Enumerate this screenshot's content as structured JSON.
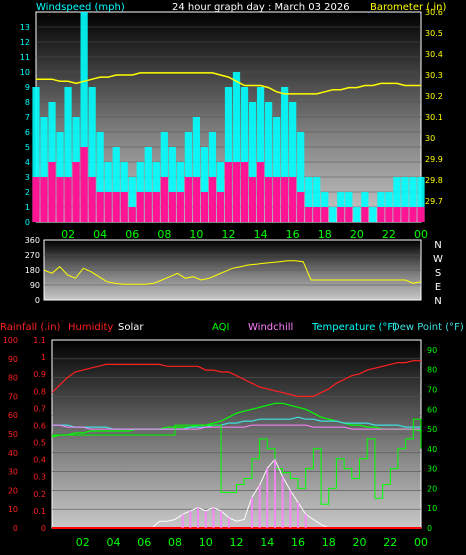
{
  "header": {
    "windspeed_label": "Windspeed (mph)",
    "title": "24 hour graph day : March 03 2026",
    "barometer_label": "Barometer (.in)"
  },
  "hours": [
    "02",
    "04",
    "06",
    "08",
    "10",
    "12",
    "14",
    "16",
    "18",
    "20",
    "22",
    "00"
  ],
  "compass": [
    "N",
    "W",
    "S",
    "E",
    "N"
  ],
  "legend": {
    "rainfall": "Rainfall (.in)",
    "humidity": "Humidity",
    "solar": "Solar",
    "aqi": "AQI",
    "windchill": "Windchill",
    "temperature": "Temperature (°F)",
    "dewpoint": "Dew Point (°F)"
  },
  "colors": {
    "windspeed": "#00ffff",
    "gust": "#ff1493",
    "barometer": "#ffff00",
    "direction": "#ffff00",
    "humidity": "#ff2020",
    "temperature": "#00ff00",
    "dewpoint": "#40e0e0",
    "windchill": "#ff80ff",
    "aqi": "#00ff00",
    "rainfall": "#ff0000",
    "solar": "#ffffff",
    "hours": "#00ff00"
  },
  "chart_data": [
    {
      "type": "bar",
      "name": "wind",
      "title": "",
      "xlabel": "",
      "ylabel": "Windspeed (mph)",
      "x": [
        0.0,
        0.5,
        1.0,
        1.5,
        2.0,
        2.5,
        3.0,
        3.5,
        4.0,
        4.5,
        5.0,
        5.5,
        6.0,
        6.5,
        7.0,
        7.5,
        8.0,
        8.5,
        9.0,
        9.5,
        10.0,
        10.5,
        11.0,
        11.5,
        12.0,
        12.5,
        13.0,
        13.5,
        14.0,
        14.5,
        15.0,
        15.5,
        16.0,
        16.5,
        17.0,
        17.5,
        18.0,
        18.5,
        19.0,
        19.5,
        20.0,
        20.5,
        21.0,
        21.5,
        22.0,
        22.5,
        23.0,
        23.5,
        24.0
      ],
      "series": [
        {
          "name": "Windspeed",
          "values": [
            9,
            7,
            8,
            6,
            9,
            7,
            14,
            9,
            6,
            4,
            5,
            4,
            3,
            4,
            5,
            4,
            6,
            5,
            4,
            6,
            7,
            5,
            6,
            4,
            9,
            10,
            9,
            8,
            9,
            8,
            7,
            9,
            8,
            6,
            3,
            3,
            2,
            1,
            2,
            2,
            1,
            2,
            1,
            2,
            2,
            3,
            3,
            3,
            3
          ]
        },
        {
          "name": "Gust",
          "values": [
            3,
            3,
            4,
            3,
            3,
            4,
            5,
            3,
            2,
            2,
            2,
            2,
            1,
            2,
            2,
            2,
            3,
            2,
            2,
            3,
            3,
            2,
            3,
            2,
            4,
            4,
            4,
            3,
            4,
            3,
            3,
            3,
            3,
            2,
            1,
            1,
            1,
            0,
            1,
            1,
            0,
            1,
            0,
            1,
            1,
            1,
            1,
            1,
            1
          ]
        }
      ],
      "ylim": [
        0,
        14
      ],
      "barometer": {
        "name": "Barometer",
        "values": [
          30.28,
          30.28,
          30.28,
          30.27,
          30.27,
          30.26,
          30.27,
          30.28,
          30.29,
          30.29,
          30.3,
          30.3,
          30.3,
          30.31,
          30.31,
          30.31,
          30.31,
          30.31,
          30.31,
          30.31,
          30.31,
          30.31,
          30.31,
          30.3,
          30.29,
          30.27,
          30.25,
          30.25,
          30.25,
          30.24,
          30.22,
          30.21,
          30.21,
          30.21,
          30.21,
          30.21,
          30.22,
          30.23,
          30.23,
          30.24,
          30.24,
          30.25,
          30.25,
          30.26,
          30.26,
          30.26,
          30.25,
          30.25,
          30.25
        ],
        "ylim": [
          29.6,
          30.6
        ]
      },
      "x_ticks": [
        "02",
        "04",
        "06",
        "08",
        "10",
        "12",
        "14",
        "16",
        "18",
        "20",
        "22",
        "00"
      ],
      "y_ticks": [
        0,
        1,
        2,
        3,
        4,
        5,
        6,
        7,
        8,
        9,
        10,
        11,
        12,
        13
      ],
      "y2_ticks": [
        29.7,
        29.8,
        29.9,
        30,
        30.1,
        30.2,
        30.3,
        30.4,
        30.5,
        30.6
      ]
    },
    {
      "type": "line",
      "name": "wind-direction",
      "title": "",
      "ylabel": "",
      "x": [
        0.0,
        0.5,
        1.0,
        1.5,
        2.0,
        2.5,
        3.0,
        3.5,
        4.0,
        4.5,
        5.0,
        5.5,
        6.0,
        6.5,
        7.0,
        7.5,
        8.0,
        8.5,
        9.0,
        9.5,
        10.0,
        10.5,
        11.0,
        11.5,
        12.0,
        12.5,
        13.0,
        13.5,
        14.0,
        14.5,
        15.0,
        15.5,
        16.0,
        16.5,
        17.0,
        17.5,
        18.0,
        18.5,
        19.0,
        19.5,
        20.0,
        20.5,
        21.0,
        21.5,
        22.0,
        22.5,
        23.0,
        23.5,
        24.0
      ],
      "series": [
        {
          "name": "Wind direction",
          "values": [
            180,
            160,
            200,
            150,
            130,
            190,
            170,
            140,
            110,
            100,
            95,
            95,
            95,
            95,
            100,
            120,
            140,
            160,
            130,
            140,
            120,
            130,
            150,
            170,
            190,
            200,
            210,
            215,
            220,
            225,
            230,
            235,
            235,
            230,
            120,
            120,
            120,
            120,
            120,
            120,
            120,
            120,
            120,
            120,
            120,
            120,
            120,
            100,
            110
          ]
        }
      ],
      "ylim": [
        0,
        360
      ],
      "y_ticks": [
        0,
        90,
        180,
        270,
        360
      ]
    },
    {
      "type": "line",
      "name": "temperature-humidity",
      "title": "",
      "x": [
        0.0,
        0.5,
        1.0,
        1.5,
        2.0,
        2.5,
        3.0,
        3.5,
        4.0,
        4.5,
        5.0,
        5.5,
        6.0,
        6.5,
        7.0,
        7.5,
        8.0,
        8.5,
        9.0,
        9.5,
        10.0,
        10.5,
        11.0,
        11.5,
        12.0,
        12.5,
        13.0,
        13.5,
        14.0,
        14.5,
        15.0,
        15.5,
        16.0,
        16.5,
        17.0,
        17.5,
        18.0,
        18.5,
        19.0,
        19.5,
        20.0,
        20.5,
        21.0,
        21.5,
        22.0,
        22.5,
        23.0,
        23.5,
        24.0
      ],
      "series": [
        {
          "name": "Humidity",
          "values": [
            72,
            76,
            80,
            83,
            84,
            85,
            86,
            87,
            87,
            87,
            87,
            87,
            87,
            87,
            87,
            86,
            86,
            86,
            86,
            86,
            84,
            84,
            83,
            83,
            81,
            79,
            77,
            75,
            74,
            73,
            72,
            71,
            70,
            70,
            70,
            72,
            74,
            77,
            79,
            81,
            82,
            84,
            85,
            86,
            87,
            88,
            88,
            89,
            89
          ]
        },
        {
          "name": "Temperature",
          "values": [
            46,
            47,
            47,
            48,
            48,
            49,
            49,
            49,
            49,
            49,
            49,
            50,
            50,
            50,
            50,
            51,
            51,
            51,
            51,
            52,
            52,
            53,
            54,
            56,
            58,
            59,
            60,
            61,
            62,
            63,
            63,
            62,
            61,
            60,
            58,
            56,
            55,
            54,
            53,
            52,
            52,
            51,
            51,
            50,
            50,
            50,
            50,
            50,
            49
          ]
        },
        {
          "name": "Dew Point",
          "values": [
            52,
            52,
            52,
            51,
            51,
            51,
            51,
            51,
            50,
            50,
            50,
            50,
            50,
            50,
            50,
            50,
            50,
            50,
            51,
            51,
            51,
            52,
            52,
            53,
            53,
            54,
            54,
            55,
            55,
            55,
            55,
            55,
            56,
            55,
            55,
            54,
            54,
            54,
            53,
            53,
            53,
            53,
            52,
            52,
            52,
            52,
            51,
            51,
            51
          ]
        },
        {
          "name": "Windchill",
          "values": [
            52,
            52,
            51,
            51,
            51,
            50,
            50,
            50,
            50,
            50,
            50,
            50,
            50,
            50,
            50,
            50,
            50,
            50,
            50,
            50,
            51,
            51,
            51,
            51,
            51,
            51,
            52,
            52,
            52,
            52,
            52,
            52,
            52,
            52,
            51,
            51,
            51,
            51,
            51,
            50,
            50,
            50,
            50,
            50,
            50,
            50,
            50,
            50,
            50
          ]
        },
        {
          "name": "AQI",
          "values": [
            47,
            47,
            47,
            47,
            47,
            47,
            47,
            47,
            47,
            47,
            47,
            47,
            47,
            47,
            47,
            47,
            52,
            52,
            52,
            52,
            52,
            52,
            18,
            18,
            22,
            25,
            35,
            45,
            40,
            30,
            28,
            25,
            20,
            30,
            40,
            12,
            20,
            35,
            30,
            25,
            35,
            45,
            15,
            22,
            30,
            40,
            45,
            55,
            40
          ]
        },
        {
          "name": "Solar",
          "values": [
            0,
            0,
            0,
            0,
            0,
            0,
            0,
            0,
            0,
            0,
            0,
            0,
            0,
            0,
            0.04,
            0.04,
            0.05,
            0.08,
            0.1,
            0.12,
            0.1,
            0.12,
            0.1,
            0.06,
            0.04,
            0.05,
            0.18,
            0.25,
            0.35,
            0.4,
            0.3,
            0.22,
            0.15,
            0.08,
            0.05,
            0.02,
            0,
            0,
            0,
            0,
            0,
            0,
            0,
            0,
            0,
            0,
            0,
            0,
            0
          ]
        },
        {
          "name": "Rainfall",
          "values": [
            0,
            0,
            0,
            0,
            0,
            0,
            0,
            0,
            0,
            0,
            0,
            0,
            0,
            0,
            0,
            0,
            0,
            0,
            0,
            0,
            0,
            0,
            0,
            0,
            0,
            0,
            0,
            0,
            0,
            0,
            0,
            0,
            0,
            0,
            0,
            0,
            0,
            0,
            0,
            0,
            0,
            0,
            0,
            0,
            0,
            0,
            0,
            0,
            0
          ]
        }
      ],
      "ylim_left_humidity": [
        0,
        100
      ],
      "ylim_left_rain": [
        0,
        1.1
      ],
      "ylim_right_temp": [
        0,
        95
      ],
      "y_ticks_humidity": [
        0,
        10,
        20,
        30,
        40,
        50,
        60,
        70,
        80,
        90,
        100
      ],
      "y_ticks_rain": [
        0,
        0.1,
        0.2,
        0.3,
        0.4,
        0.5,
        0.6,
        0.7,
        0.8,
        0.9,
        1,
        1.1
      ],
      "y_ticks_temp": [
        0,
        10,
        20,
        30,
        40,
        50,
        60,
        70,
        80,
        90
      ]
    }
  ]
}
